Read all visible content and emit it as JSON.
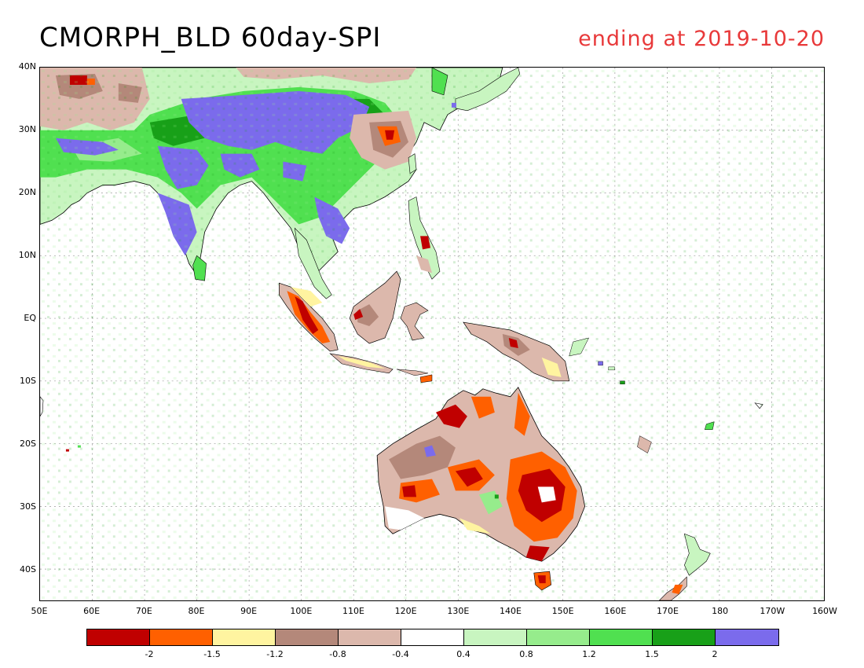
{
  "title": "CMORPH_BLD 60day-SPI",
  "subtitle": "ending at 2019-10-20",
  "lat_labels": [
    "40N",
    "30N",
    "20N",
    "10N",
    "EQ",
    "10S",
    "20S",
    "30S",
    "40S"
  ],
  "lon_labels": [
    "50E",
    "60E",
    "70E",
    "80E",
    "90E",
    "100E",
    "110E",
    "120E",
    "130E",
    "140E",
    "150E",
    "160E",
    "170E",
    "180",
    "170W",
    "160W"
  ],
  "colorbar": {
    "colors": [
      "#c00000",
      "#ff6000",
      "#fff4a0",
      "#b4887a",
      "#dcb8ac",
      "#ffffff",
      "#c8f5c0",
      "#96ec8c",
      "#50e050",
      "#18a018",
      "#7b6bec"
    ],
    "labels": [
      "-2",
      "-1.5",
      "-1.2",
      "-0.8",
      "-0.4",
      "0.4",
      "0.8",
      "1.2",
      "1.5",
      "2"
    ]
  },
  "colors": {
    "grid": "#999999",
    "coast": "#000000",
    "title_accent": "#e8393a"
  }
}
